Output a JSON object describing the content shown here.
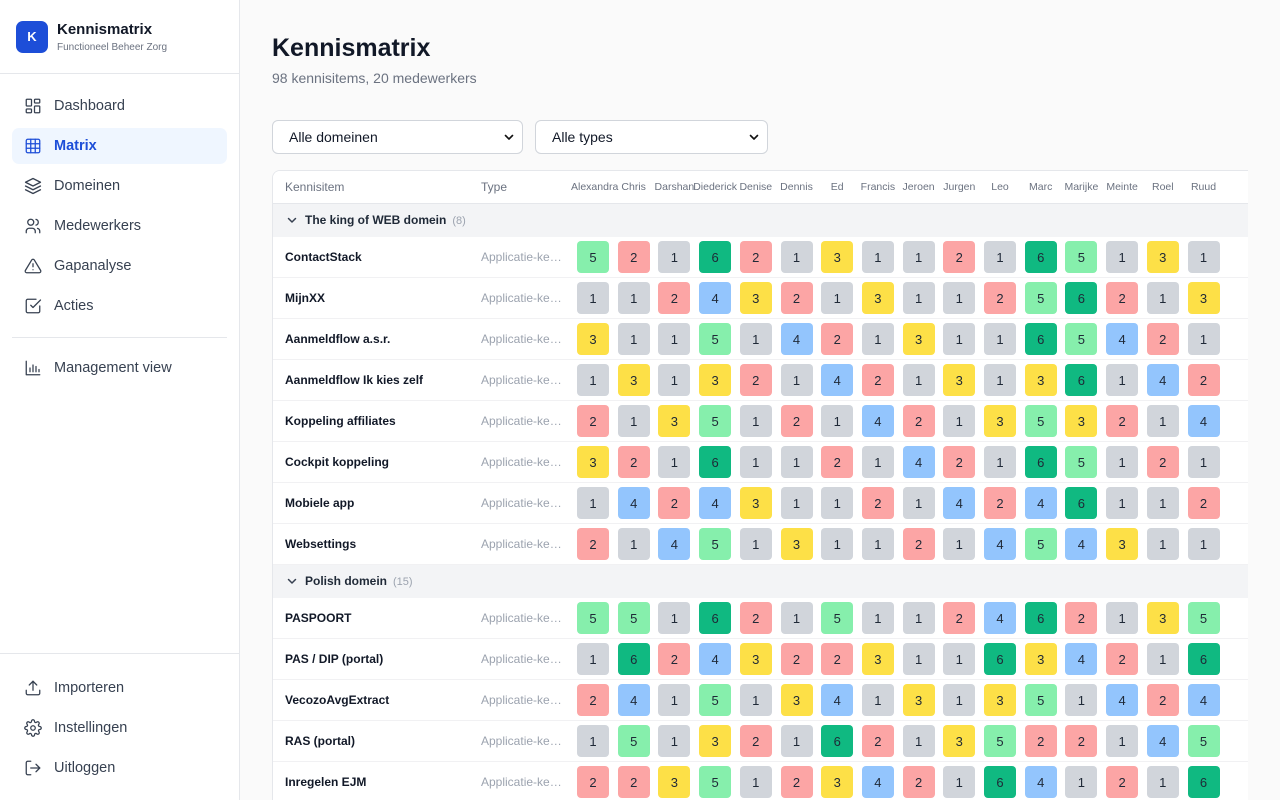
{
  "app": {
    "logo_letter": "K",
    "title": "Kennismatrix",
    "subtitle": "Functioneel Beheer Zorg"
  },
  "nav": [
    {
      "label": "Dashboard",
      "icon": "dashboard-icon",
      "active": false
    },
    {
      "label": "Matrix",
      "icon": "grid-icon",
      "active": true
    },
    {
      "label": "Domeinen",
      "icon": "layers-icon",
      "active": false
    },
    {
      "label": "Medewerkers",
      "icon": "users-icon",
      "active": false
    },
    {
      "label": "Gapanalyse",
      "icon": "warning-icon",
      "active": false
    },
    {
      "label": "Acties",
      "icon": "checkbox-icon",
      "active": false
    }
  ],
  "nav_secondary": {
    "label": "Management view",
    "icon": "bar-chart-icon"
  },
  "nav_bottom": [
    {
      "label": "Importeren",
      "icon": "upload-icon"
    },
    {
      "label": "Instellingen",
      "icon": "gear-icon"
    },
    {
      "label": "Uitloggen",
      "icon": "logout-icon"
    }
  ],
  "page": {
    "title": "Kennismatrix",
    "subtitle": "98 kennisitems, 20 medewerkers"
  },
  "filters": {
    "domain": "Alle domeinen",
    "type": "Alle types"
  },
  "table": {
    "header_item": "Kennisitem",
    "header_type": "Type",
    "employees": [
      "Alexandra",
      "Chris",
      "Darshan",
      "Diederick",
      "Denise",
      "Dennis",
      "Ed",
      "Francis",
      "Jeroen",
      "Jurgen",
      "Leo",
      "Marc",
      "Marijke",
      "Meinte",
      "Roel",
      "Ruud"
    ],
    "groups": [
      {
        "name": "The king of WEB domein",
        "count": "(8)",
        "rows": [
          {
            "item": "ContactStack",
            "type": "Applicatie-kennis",
            "levels": [
              5,
              2,
              1,
              6,
              2,
              1,
              3,
              1,
              1,
              2,
              1,
              6,
              5,
              1,
              3,
              1
            ]
          },
          {
            "item": "MijnXX",
            "type": "Applicatie-kennis",
            "levels": [
              1,
              1,
              2,
              4,
              3,
              2,
              1,
              3,
              1,
              1,
              2,
              5,
              6,
              2,
              1,
              3
            ]
          },
          {
            "item": "Aanmeldflow a.s.r.",
            "type": "Applicatie-kennis",
            "levels": [
              3,
              1,
              1,
              5,
              1,
              4,
              2,
              1,
              3,
              1,
              1,
              6,
              5,
              4,
              2,
              1
            ]
          },
          {
            "item": "Aanmeldflow Ik kies zelf",
            "type": "Applicatie-kennis",
            "levels": [
              1,
              3,
              1,
              3,
              2,
              1,
              4,
              2,
              1,
              3,
              1,
              3,
              6,
              1,
              4,
              2
            ]
          },
          {
            "item": "Koppeling affiliates",
            "type": "Applicatie-kennis",
            "levels": [
              2,
              1,
              3,
              5,
              1,
              2,
              1,
              4,
              2,
              1,
              3,
              5,
              3,
              2,
              1,
              4
            ]
          },
          {
            "item": "Cockpit koppeling",
            "type": "Applicatie-kennis",
            "levels": [
              3,
              2,
              1,
              6,
              1,
              1,
              2,
              1,
              4,
              2,
              1,
              6,
              5,
              1,
              2,
              1
            ]
          },
          {
            "item": "Mobiele app",
            "type": "Applicatie-kennis",
            "levels": [
              1,
              4,
              2,
              4,
              3,
              1,
              1,
              2,
              1,
              4,
              2,
              4,
              6,
              1,
              1,
              2
            ]
          },
          {
            "item": "Websettings",
            "type": "Applicatie-kennis",
            "levels": [
              2,
              1,
              4,
              5,
              1,
              3,
              1,
              1,
              2,
              1,
              4,
              5,
              4,
              3,
              1,
              1
            ]
          }
        ]
      },
      {
        "name": "Polish domein",
        "count": "(15)",
        "rows": [
          {
            "item": "PASPOORT",
            "type": "Applicatie-kennis",
            "levels": [
              5,
              5,
              1,
              6,
              2,
              1,
              5,
              1,
              1,
              2,
              4,
              6,
              2,
              1,
              3,
              5
            ]
          },
          {
            "item": "PAS / DIP (portal)",
            "type": "Applicatie-kennis",
            "levels": [
              1,
              6,
              2,
              4,
              3,
              2,
              2,
              3,
              1,
              1,
              6,
              3,
              4,
              2,
              1,
              6
            ]
          },
          {
            "item": "VecozoAvgExtract",
            "type": "Applicatie-kennis",
            "levels": [
              2,
              4,
              1,
              5,
              1,
              3,
              4,
              1,
              3,
              1,
              3,
              5,
              1,
              4,
              2,
              4
            ]
          },
          {
            "item": "RAS (portal)",
            "type": "Applicatie-kennis",
            "levels": [
              1,
              5,
              1,
              3,
              2,
              1,
              6,
              2,
              1,
              3,
              5,
              2,
              2,
              1,
              4,
              5
            ]
          },
          {
            "item": "Inregelen EJM",
            "type": "Applicatie-kennis",
            "levels": [
              2,
              2,
              3,
              5,
              1,
              2,
              3,
              4,
              2,
              1,
              6,
              4,
              1,
              2,
              1,
              6
            ]
          }
        ]
      }
    ]
  }
}
